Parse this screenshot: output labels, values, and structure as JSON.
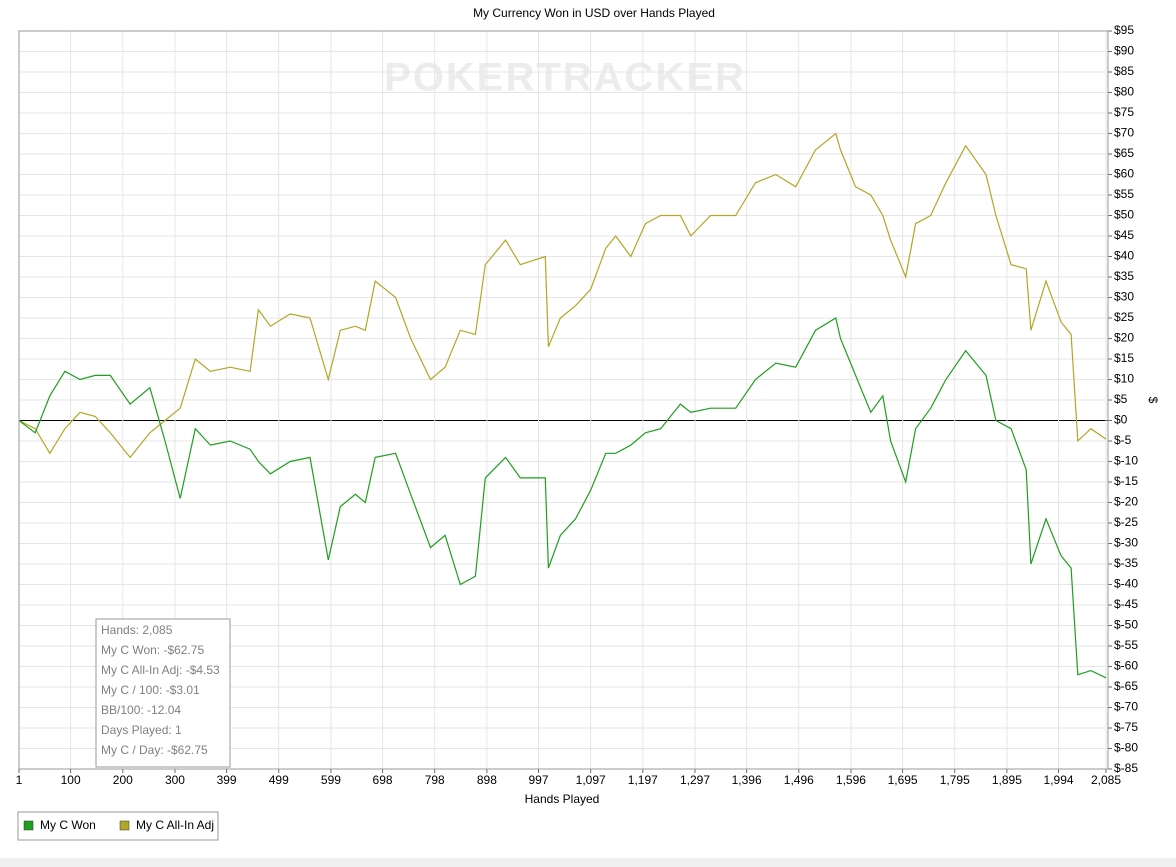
{
  "chart_data": {
    "type": "line",
    "title": "My Currency Won in USD over Hands Played",
    "watermark": "POKERTRACKER",
    "x_label": "Hands Played",
    "y_label": "$",
    "x": [
      1,
      32,
      60,
      89,
      118,
      147,
      176,
      214,
      252,
      281,
      310,
      339,
      368,
      406,
      444,
      460,
      483,
      521,
      559,
      594,
      617,
      646,
      665,
      684,
      723,
      752,
      790,
      818,
      847,
      876,
      895,
      934,
      962,
      1010,
      1016,
      1039,
      1068,
      1097,
      1126,
      1145,
      1174,
      1202,
      1231,
      1269,
      1289,
      1327,
      1375,
      1413,
      1452,
      1490,
      1528,
      1567,
      1576,
      1605,
      1634,
      1657,
      1672,
      1701,
      1720,
      1749,
      1778,
      1816,
      1855,
      1874,
      1903,
      1932,
      1941,
      1970,
      1999,
      2018,
      2031,
      2056,
      2085
    ],
    "series": [
      {
        "name": "My C Won",
        "color": "#1f9e1f",
        "values": [
          0,
          -3,
          6,
          12,
          10,
          11,
          11,
          4,
          8,
          -5,
          -19,
          -2,
          -6,
          -5,
          -7,
          -10,
          -13,
          -10,
          -9,
          -34,
          -21,
          -18,
          -20,
          -9,
          -8,
          -18,
          -31,
          -28,
          -40,
          -38,
          -14,
          -9,
          -14,
          -14,
          -36,
          -28,
          -24,
          -17,
          -8,
          -8,
          -6,
          -3,
          -2,
          4,
          2,
          3,
          3,
          10,
          14,
          13,
          22,
          25,
          20,
          11,
          2,
          6,
          -5,
          -15,
          -2,
          3,
          10,
          17,
          11,
          0,
          -2,
          -12,
          -35,
          -24,
          -33,
          -36,
          -62,
          -61,
          -62.75
        ]
      },
      {
        "name": "My C All-In Adj",
        "color": "#b3a626",
        "values": [
          0,
          -2,
          -8,
          -2,
          2,
          1,
          -3,
          -9,
          -3,
          0,
          3,
          15,
          12,
          13,
          12,
          27,
          23,
          26,
          25,
          10,
          22,
          23,
          22,
          34,
          30,
          20,
          10,
          13,
          22,
          21,
          38,
          44,
          38,
          40,
          18,
          25,
          28,
          32,
          42,
          45,
          40,
          48,
          50,
          50,
          45,
          50,
          50,
          58,
          60,
          57,
          66,
          70,
          66,
          57,
          55,
          50,
          44,
          35,
          48,
          50,
          58,
          67,
          60,
          50,
          38,
          37,
          22,
          34,
          24,
          21,
          -5,
          -2,
          -4.53
        ]
      }
    ],
    "xlim": [
      1,
      2085
    ],
    "xticks": [
      1,
      100,
      200,
      300,
      399,
      499,
      599,
      698,
      798,
      898,
      997,
      {
        "value": 1097,
        "label": "1,097"
      },
      {
        "value": 1197,
        "label": "1,197"
      },
      {
        "value": 1297,
        "label": "1,297"
      },
      {
        "value": 1396,
        "label": "1,396"
      },
      {
        "value": 1496,
        "label": "1,496"
      },
      {
        "value": 1596,
        "label": "1,596"
      },
      {
        "value": 1695,
        "label": "1,695"
      },
      {
        "value": 1795,
        "label": "1,795"
      },
      {
        "value": 1895,
        "label": "1,895"
      },
      {
        "value": 1994,
        "label": "1,994"
      },
      {
        "value": 2085,
        "label": "2,085"
      }
    ],
    "ylim": [
      -85,
      95
    ],
    "yticks": [
      {
        "value": 95,
        "label": "$95"
      },
      {
        "value": 90,
        "label": "$90"
      },
      {
        "value": 85,
        "label": "$85"
      },
      {
        "value": 80,
        "label": "$80"
      },
      {
        "value": 75,
        "label": "$75"
      },
      {
        "value": 70,
        "label": "$70"
      },
      {
        "value": 65,
        "label": "$65"
      },
      {
        "value": 60,
        "label": "$60"
      },
      {
        "value": 55,
        "label": "$55"
      },
      {
        "value": 50,
        "label": "$50"
      },
      {
        "value": 45,
        "label": "$45"
      },
      {
        "value": 40,
        "label": "$40"
      },
      {
        "value": 35,
        "label": "$35"
      },
      {
        "value": 30,
        "label": "$30"
      },
      {
        "value": 25,
        "label": "$25"
      },
      {
        "value": 20,
        "label": "$20"
      },
      {
        "value": 15,
        "label": "$15"
      },
      {
        "value": 10,
        "label": "$10"
      },
      {
        "value": 5,
        "label": "$5"
      },
      {
        "value": 0,
        "label": "$0"
      },
      {
        "value": -5,
        "label": "$-5"
      },
      {
        "value": -10,
        "label": "$-10"
      },
      {
        "value": -15,
        "label": "$-15"
      },
      {
        "value": -20,
        "label": "$-20"
      },
      {
        "value": -25,
        "label": "$-25"
      },
      {
        "value": -30,
        "label": "$-30"
      },
      {
        "value": -35,
        "label": "$-35"
      },
      {
        "value": -40,
        "label": "$-40"
      },
      {
        "value": -45,
        "label": "$-45"
      },
      {
        "value": -50,
        "label": "$-50"
      },
      {
        "value": -55,
        "label": "$-55"
      },
      {
        "value": -60,
        "label": "$-60"
      },
      {
        "value": -65,
        "label": "$-65"
      },
      {
        "value": -70,
        "label": "$-70"
      },
      {
        "value": -75,
        "label": "$-75"
      },
      {
        "value": -80,
        "label": "$-80"
      },
      {
        "value": -85,
        "label": "$-85"
      }
    ],
    "grid": true,
    "annotations": [
      "Hands: 2,085",
      "My C Won: -$62.75",
      "My C All-In Adj: -$4.53",
      "My C / 100: -$3.01",
      "BB/100: -12.04",
      "Days Played: 1",
      "My C / Day: -$62.75"
    ]
  }
}
